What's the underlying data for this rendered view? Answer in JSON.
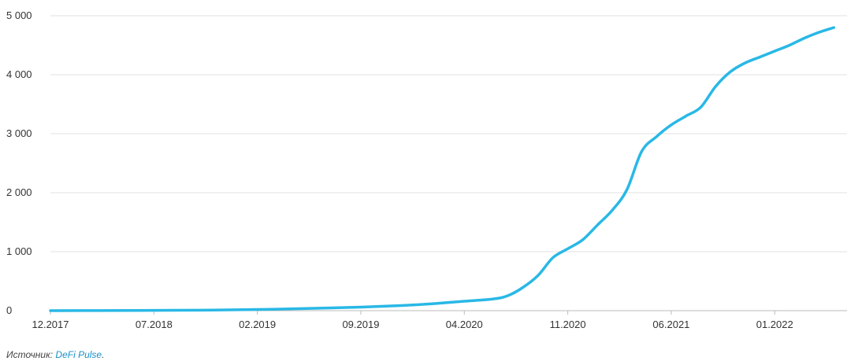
{
  "chart_data": {
    "type": "line",
    "x_ticks": [
      "12.2017",
      "07.2018",
      "02.2019",
      "09.2019",
      "04.2020",
      "11.2020",
      "06.2021",
      "01.2022"
    ],
    "y_ticks": [
      "0",
      "1 000",
      "2 000",
      "3 000",
      "4 000",
      "5 000"
    ],
    "ylim": [
      0,
      5000
    ],
    "grid": true,
    "line_color": "#29b8e6",
    "series": [
      {
        "x": [
          "12.2017",
          "03.2018",
          "07.2018",
          "11.2018",
          "02.2019",
          "05.2019",
          "09.2019",
          "12.2019",
          "02.2020",
          "04.2020",
          "06.2020",
          "07.2020",
          "08.2020",
          "09.2020",
          "10.2020",
          "11.2020",
          "12.2020",
          "01.2021",
          "02.2021",
          "03.2021",
          "04.2021",
          "05.2021",
          "06.2021",
          "07.2021",
          "08.2021",
          "09.2021",
          "10.2021",
          "11.2021",
          "12.2021",
          "01.2022",
          "02.2022",
          "03.2022",
          "04.2022",
          "05.2022"
        ],
        "y": [
          0,
          2,
          5,
          10,
          20,
          35,
          60,
          90,
          120,
          160,
          200,
          260,
          400,
          600,
          900,
          1050,
          1200,
          1450,
          1700,
          2050,
          2700,
          2950,
          3150,
          3300,
          3450,
          3800,
          4050,
          4200,
          4300,
          4400,
          4500,
          4620,
          4720,
          4800
        ]
      }
    ]
  },
  "source": {
    "prefix": "Источник: ",
    "link_text": "DeFi Pulse",
    "suffix": "."
  }
}
